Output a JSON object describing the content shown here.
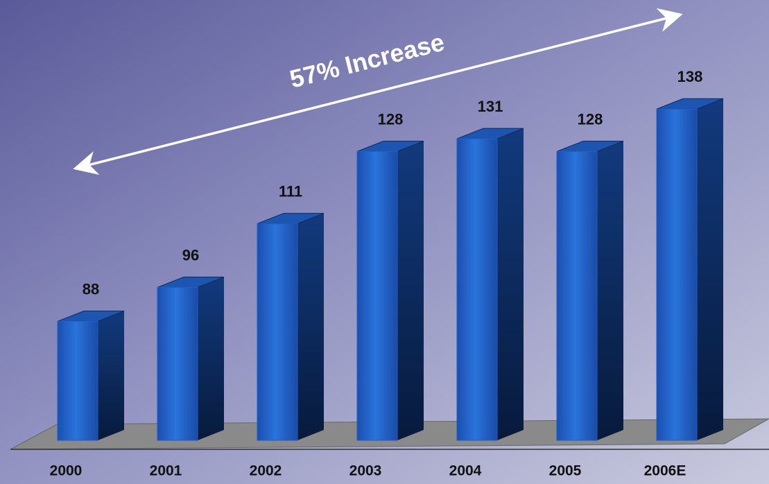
{
  "chart_data": {
    "type": "bar",
    "annotation": "57% Increase",
    "categories": [
      "2000",
      "2001",
      "2002",
      "2003",
      "2004",
      "2005",
      "2006E"
    ],
    "values": [
      88,
      96,
      111,
      128,
      131,
      128,
      138
    ],
    "color": "#1f5fc8",
    "ylim": [
      60,
      140
    ]
  }
}
